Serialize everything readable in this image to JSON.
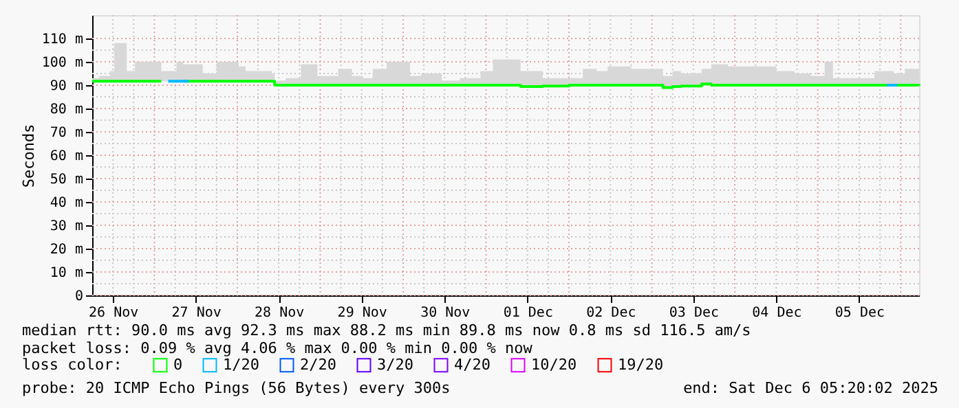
{
  "chart_data": {
    "type": "step",
    "ylabel": "Seconds",
    "legend_title": "loss color:",
    "legend": "bottom",
    "grid": true,
    "xlim": [
      "2025-11-26T06:00",
      "2025-12-06T05:20"
    ],
    "xticks": [
      {
        "value": "2025-11-26T12:00",
        "label": "26 Nov"
      },
      {
        "value": "2025-11-27T12:00",
        "label": "27 Nov"
      },
      {
        "value": "2025-11-28T12:00",
        "label": "28 Nov"
      },
      {
        "value": "2025-11-29T12:00",
        "label": "29 Nov"
      },
      {
        "value": "2025-11-30T12:00",
        "label": "30 Nov"
      },
      {
        "value": "2025-12-01T12:00",
        "label": "01 Dec"
      },
      {
        "value": "2025-12-02T12:00",
        "label": "02 Dec"
      },
      {
        "value": "2025-12-03T12:00",
        "label": "03 Dec"
      },
      {
        "value": "2025-12-04T12:00",
        "label": "04 Dec"
      },
      {
        "value": "2025-12-05T12:00",
        "label": "05 Dec"
      }
    ],
    "ylim": [
      0,
      120
    ],
    "yticks": [
      0,
      {
        "value": 10,
        "label": "10 m"
      },
      {
        "value": 20,
        "label": "20 m"
      },
      {
        "value": 30,
        "label": "30 m"
      },
      {
        "value": 40,
        "label": "40 m"
      },
      {
        "value": 50,
        "label": "50 m"
      },
      {
        "value": 60,
        "label": "60 m"
      },
      {
        "value": 70,
        "label": "70 m"
      },
      {
        "value": 80,
        "label": "80 m"
      },
      {
        "value": 90,
        "label": "90 m"
      },
      {
        "value": 100,
        "label": "100 m"
      },
      {
        "value": 110,
        "label": "110 m"
      }
    ],
    "series": [
      {
        "name": "0",
        "color": "#00ff00",
        "x": [
          "2025-11-26T06:00",
          "2025-11-26T08:00",
          "2025-11-26T11:12",
          "2025-11-26T12:24",
          "2025-11-26T16:00",
          "2025-11-26T18:24",
          "2025-11-27T02:00",
          "2025-11-27T06:24",
          "2025-11-27T08:24",
          "2025-11-27T14:00",
          "2025-11-27T18:00",
          "2025-11-28T00:24",
          "2025-11-28T02:24",
          "2025-11-28T08:00",
          "2025-11-28T10:00",
          "2025-11-28T10:48",
          "2025-11-28T14:00",
          "2025-11-28T18:24",
          "2025-11-28T23:12",
          "2025-11-29T05:12",
          "2025-11-29T09:12",
          "2025-11-29T12:24",
          "2025-11-29T15:12",
          "2025-11-29T19:12",
          "2025-11-30T02:00",
          "2025-11-30T05:12",
          "2025-11-30T11:12",
          "2025-11-30T16:24",
          "2025-11-30T22:24",
          "2025-12-01T02:00",
          "2025-12-01T10:00",
          "2025-12-01T16:24",
          "2025-12-02T00:00",
          "2025-12-02T04:00",
          "2025-12-02T08:00",
          "2025-12-02T11:12",
          "2025-12-02T18:00",
          "2025-12-03T03:12",
          "2025-12-03T06:00",
          "2025-12-03T08:24",
          "2025-12-03T14:24",
          "2025-12-03T17:12",
          "2025-12-03T22:00",
          "2025-12-04T00:00",
          "2025-12-04T06:24",
          "2025-12-04T12:00",
          "2025-12-04T17:12",
          "2025-12-04T22:00",
          "2025-12-05T02:00",
          "2025-12-05T04:24",
          "2025-12-05T14:00",
          "2025-12-05T16:24",
          "2025-12-05T22:00",
          "2025-12-06T01:12",
          "2025-12-06T03:12",
          "2025-12-06T05:20"
        ],
        "values": [
          91.7,
          91.7,
          91.7,
          91.7,
          91.7,
          91.7,
          91.7,
          null,
          91.7,
          91.7,
          91.7,
          91.7,
          91.7,
          91.7,
          91.7,
          90,
          90,
          90,
          90,
          90,
          90,
          90,
          90,
          90,
          90,
          90,
          90,
          90,
          90,
          90,
          89.4,
          89.6,
          90,
          90,
          90,
          90,
          90,
          89,
          89.4,
          89.6,
          90.5,
          90,
          90,
          90,
          90,
          90,
          90,
          90,
          90,
          90,
          90,
          90,
          90,
          90,
          90,
          89.8
        ],
        "lower": [
          91.7,
          91.7,
          91.7,
          91.7,
          91.7,
          91.7,
          91.7,
          91.7,
          91.7,
          91.7,
          91.7,
          91.7,
          91.7,
          91.7,
          91.7,
          90,
          90,
          90,
          90,
          90,
          90,
          90,
          90,
          90,
          90,
          90,
          90,
          90,
          90,
          90,
          89.4,
          89.6,
          90,
          90,
          90,
          90,
          90,
          89,
          89.4,
          89.6,
          90.5,
          90,
          90,
          90,
          90,
          90,
          90,
          90,
          90,
          90,
          90,
          90,
          90,
          90,
          90,
          89.8
        ],
        "upper": [
          93,
          94,
          96,
          108,
          96,
          100,
          96,
          100,
          99,
          95,
          100,
          98,
          96,
          96,
          95,
          92,
          93,
          99,
          94,
          97,
          94,
          93,
          97,
          100,
          94,
          95,
          92,
          93,
          96,
          101,
          96,
          93,
          93,
          97,
          96,
          98,
          97,
          94,
          96,
          95,
          97,
          99,
          98,
          98,
          98,
          96,
          95,
          94,
          100,
          93,
          93,
          96,
          95,
          97,
          97,
          90.5
        ]
      },
      {
        "name": "1/20",
        "color": "#00b8ff",
        "x": [
          "2025-11-27T04:00",
          "2025-11-27T10:00",
          "2025-11-30T00:00",
          "2025-12-05T20:00",
          "2025-12-05T23:00"
        ],
        "values": [
          91.7,
          91.7,
          null,
          90,
          90
        ]
      },
      {
        "name": "2/20",
        "color": "#0059ff"
      },
      {
        "name": "3/20",
        "color": "#5e00ff"
      },
      {
        "name": "4/20",
        "color": "#7e00ff"
      },
      {
        "name": "10/20",
        "color": "#dd00ff"
      },
      {
        "name": "19/20",
        "color": "#ff0000"
      }
    ],
    "annotations": [
      "median rtt:  90.0 ms avg  92.3 ms max  88.2 ms min  89.8 ms now  0.8 ms sd  116.5   am/s",
      "packet loss: 0.09 % avg  4.06 % max  0.00 % min  0.00 % now",
      "probe:       20 ICMP Echo Pings (56 Bytes) every 300s",
      "end: Sat Dec  6 05:20:02 2025"
    ]
  }
}
